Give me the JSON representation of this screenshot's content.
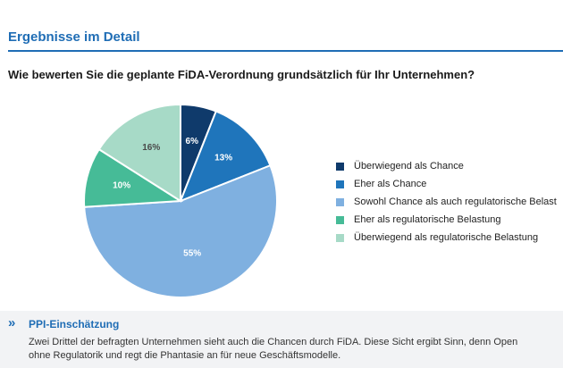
{
  "header": {
    "title": "Ergebnisse im Detail",
    "question": "Wie bewerten Sie die geplante FiDA-Verordnung grundsätzlich für Ihr Unternehmen?"
  },
  "chart_data": {
    "type": "pie",
    "title": "Wie bewerten Sie die geplante FiDA-Verordnung grundsätzlich für Ihr Unternehmen?",
    "legend_position": "right",
    "slices": [
      {
        "label": "Überwiegend als Chance",
        "value": 6,
        "display": "6%",
        "color": "#0f3a6b",
        "label_color": "#ffffff"
      },
      {
        "label": "Eher als Chance",
        "value": 13,
        "display": "13%",
        "color": "#1f75bb",
        "label_color": "#ffffff"
      },
      {
        "label": "Sowohl Chance als auch regulatorische Belast",
        "value": 55,
        "display": "55%",
        "color": "#7fb0e0",
        "label_color": "#ffffff"
      },
      {
        "label": "Eher als regulatorische Belastung",
        "value": 10,
        "display": "10%",
        "color": "#46bb97",
        "label_color": "#ffffff"
      },
      {
        "label": "Überwiegend als regulatorische Belastung",
        "value": 16,
        "display": "16%",
        "color": "#a7dac7",
        "label_color": "#4a4a4a"
      }
    ]
  },
  "ppi": {
    "chevron": "»",
    "title": "PPI-Einschätzung",
    "line1": "Zwei Drittel der befragten Unternehmen sieht auch die Chancen durch FiDA. Diese Sicht ergibt Sinn, denn Open",
    "line2": "ohne Regulatorik und regt die Phantasie an für neue Geschäftsmodelle."
  },
  "colors": {
    "accent": "#1f6db5",
    "panel_background": "#f2f3f5"
  }
}
